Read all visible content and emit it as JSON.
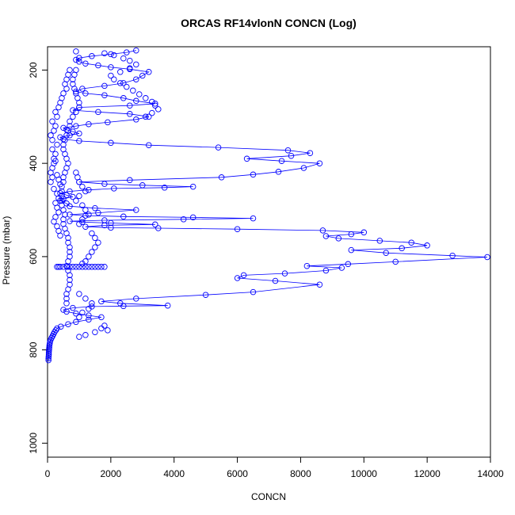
{
  "chart_data": {
    "type": "line",
    "title": "ORCAS RF14vlonN CONCN (Log)",
    "xlabel": "CONCN",
    "ylabel": "Pressure (mbar)",
    "xlim": [
      0,
      14000
    ],
    "ylim": [
      150,
      1030
    ],
    "y_reversed": true,
    "grid": false,
    "legend": "none",
    "x_ticks": [
      0,
      2000,
      4000,
      6000,
      8000,
      10000,
      12000,
      14000
    ],
    "y_ticks": [
      200,
      400,
      600,
      800,
      1000
    ],
    "colors": {
      "series": "#0000ff",
      "axes": "#000000"
    },
    "series": [
      {
        "points": [
          [
            30,
            822
          ],
          [
            30,
            818
          ],
          [
            35,
            814
          ],
          [
            40,
            810
          ],
          [
            40,
            806
          ],
          [
            45,
            802
          ],
          [
            50,
            798
          ],
          [
            55,
            794
          ],
          [
            60,
            790
          ],
          [
            70,
            786
          ],
          [
            80,
            782
          ],
          [
            100,
            778
          ],
          [
            130,
            774
          ],
          [
            160,
            770
          ],
          [
            190,
            766
          ],
          [
            220,
            762
          ],
          [
            260,
            758
          ],
          [
            300,
            754
          ],
          [
            420,
            750
          ],
          [
            650,
            745
          ],
          [
            900,
            740
          ],
          [
            1300,
            735
          ],
          [
            1700,
            730
          ],
          [
            1300,
            726
          ],
          [
            900,
            722
          ],
          [
            600,
            718
          ],
          [
            500,
            714
          ],
          [
            800,
            710
          ],
          [
            1400,
            707
          ],
          [
            2400,
            706
          ],
          [
            3800,
            705
          ],
          [
            2300,
            700
          ],
          [
            1700,
            696
          ],
          [
            2800,
            690
          ],
          [
            5000,
            682
          ],
          [
            6500,
            676
          ],
          [
            8600,
            660
          ],
          [
            7200,
            652
          ],
          [
            6000,
            646
          ],
          [
            6200,
            640
          ],
          [
            7500,
            636
          ],
          [
            8800,
            630
          ],
          [
            9300,
            624
          ],
          [
            8200,
            620
          ],
          [
            9500,
            616
          ],
          [
            11000,
            611
          ],
          [
            13900,
            601
          ],
          [
            12800,
            598
          ],
          [
            10700,
            592
          ],
          [
            9600,
            586
          ],
          [
            11200,
            582
          ],
          [
            12000,
            576
          ],
          [
            11500,
            570
          ],
          [
            10500,
            566
          ],
          [
            9200,
            561
          ],
          [
            8800,
            556
          ],
          [
            9600,
            552
          ],
          [
            10000,
            548
          ],
          [
            8700,
            544
          ],
          [
            6000,
            541
          ],
          [
            3500,
            539
          ],
          [
            2000,
            538
          ],
          [
            1200,
            536
          ],
          [
            1800,
            533
          ],
          [
            3400,
            531
          ],
          [
            2000,
            528
          ],
          [
            1100,
            526
          ],
          [
            700,
            524
          ],
          [
            1800,
            522
          ],
          [
            4300,
            520
          ],
          [
            6500,
            518
          ],
          [
            4600,
            516
          ],
          [
            2400,
            514
          ],
          [
            1200,
            512
          ],
          [
            700,
            510
          ],
          [
            1600,
            506
          ],
          [
            2800,
            500
          ],
          [
            1500,
            496
          ],
          [
            700,
            492
          ],
          [
            600,
            486
          ],
          [
            400,
            480
          ],
          [
            500,
            476
          ],
          [
            800,
            472
          ],
          [
            600,
            468
          ],
          [
            400,
            464
          ],
          [
            700,
            460
          ],
          [
            1300,
            457
          ],
          [
            2100,
            454
          ],
          [
            3700,
            452
          ],
          [
            4600,
            450
          ],
          [
            3000,
            447
          ],
          [
            1800,
            444
          ],
          [
            1000,
            440
          ],
          [
            2600,
            436
          ],
          [
            5500,
            430
          ],
          [
            6500,
            424
          ],
          [
            7300,
            418
          ],
          [
            8100,
            410
          ],
          [
            8600,
            400
          ],
          [
            7400,
            395
          ],
          [
            6300,
            390
          ],
          [
            7700,
            384
          ],
          [
            8300,
            378
          ],
          [
            7600,
            372
          ],
          [
            5400,
            366
          ],
          [
            3200,
            361
          ],
          [
            2000,
            356
          ],
          [
            1000,
            352
          ],
          [
            500,
            348
          ],
          [
            400,
            344
          ],
          [
            700,
            340
          ],
          [
            1000,
            336
          ],
          [
            800,
            332
          ],
          [
            600,
            328
          ],
          [
            500,
            324
          ],
          [
            900,
            320
          ],
          [
            1300,
            316
          ],
          [
            1900,
            312
          ],
          [
            2800,
            306
          ],
          [
            3200,
            300
          ],
          [
            2600,
            294
          ],
          [
            1600,
            290
          ],
          [
            800,
            286
          ],
          [
            1000,
            280
          ],
          [
            2600,
            276
          ],
          [
            3400,
            272
          ],
          [
            2800,
            266
          ],
          [
            2400,
            260
          ],
          [
            1800,
            254
          ],
          [
            1200,
            250
          ],
          [
            900,
            246
          ],
          [
            1100,
            240
          ],
          [
            1800,
            234
          ],
          [
            2400,
            228
          ],
          [
            2800,
            220
          ],
          [
            3000,
            212
          ],
          [
            3200,
            204
          ],
          [
            2600,
            198
          ],
          [
            2000,
            194
          ],
          [
            1600,
            190
          ],
          [
            1200,
            186
          ],
          [
            1000,
            182
          ],
          [
            900,
            178
          ],
          [
            1000,
            174
          ],
          [
            1400,
            170
          ],
          [
            2000,
            166
          ],
          [
            2500,
            162
          ],
          [
            2800,
            158
          ]
        ]
      }
    ],
    "markers": [
      [
        900,
        160
      ],
      [
        1800,
        164
      ],
      [
        2100,
        168
      ],
      [
        2400,
        175
      ],
      [
        2600,
        180
      ],
      [
        2800,
        188
      ],
      [
        2600,
        196
      ],
      [
        2300,
        204
      ],
      [
        2000,
        212
      ],
      [
        2100,
        220
      ],
      [
        2300,
        228
      ],
      [
        2500,
        236
      ],
      [
        2700,
        244
      ],
      [
        2900,
        252
      ],
      [
        3100,
        260
      ],
      [
        3300,
        268
      ],
      [
        3400,
        276
      ],
      [
        3500,
        284
      ],
      [
        3300,
        292
      ],
      [
        3100,
        300
      ],
      [
        900,
        200
      ],
      [
        850,
        210
      ],
      [
        800,
        220
      ],
      [
        800,
        230
      ],
      [
        850,
        240
      ],
      [
        900,
        250
      ],
      [
        950,
        260
      ],
      [
        1000,
        270
      ],
      [
        1000,
        280
      ],
      [
        900,
        290
      ],
      [
        800,
        300
      ],
      [
        700,
        310
      ],
      [
        700,
        320
      ],
      [
        650,
        330
      ],
      [
        600,
        340
      ],
      [
        550,
        350
      ],
      [
        500,
        360
      ],
      [
        500,
        370
      ],
      [
        550,
        380
      ],
      [
        600,
        390
      ],
      [
        650,
        400
      ],
      [
        600,
        410
      ],
      [
        550,
        420
      ],
      [
        500,
        430
      ],
      [
        500,
        440
      ],
      [
        450,
        450
      ],
      [
        450,
        460
      ],
      [
        450,
        470
      ],
      [
        450,
        480
      ],
      [
        450,
        490
      ],
      [
        500,
        500
      ],
      [
        550,
        510
      ],
      [
        500,
        520
      ],
      [
        500,
        530
      ],
      [
        550,
        540
      ],
      [
        600,
        550
      ],
      [
        650,
        560
      ],
      [
        650,
        570
      ],
      [
        700,
        580
      ],
      [
        700,
        590
      ],
      [
        700,
        600
      ],
      [
        650,
        610
      ],
      [
        600,
        620
      ],
      [
        620,
        622
      ],
      [
        700,
        622
      ],
      [
        800,
        622
      ],
      [
        900,
        622
      ],
      [
        1000,
        622
      ],
      [
        1100,
        622
      ],
      [
        1200,
        622
      ],
      [
        1300,
        622
      ],
      [
        1400,
        622
      ],
      [
        1500,
        622
      ],
      [
        1600,
        622
      ],
      [
        1700,
        622
      ],
      [
        1800,
        622
      ],
      [
        500,
        622
      ],
      [
        400,
        622
      ],
      [
        300,
        622
      ],
      [
        350,
        622
      ],
      [
        650,
        630
      ],
      [
        700,
        640
      ],
      [
        700,
        650
      ],
      [
        700,
        660
      ],
      [
        650,
        670
      ],
      [
        600,
        680
      ],
      [
        600,
        690
      ],
      [
        600,
        700
      ],
      [
        1000,
        680
      ],
      [
        1200,
        690
      ],
      [
        1400,
        700
      ],
      [
        1300,
        712
      ],
      [
        1100,
        720
      ],
      [
        1000,
        730
      ],
      [
        1800,
        748
      ],
      [
        1700,
        754
      ],
      [
        1900,
        758
      ],
      [
        1500,
        762
      ],
      [
        1200,
        768
      ],
      [
        1000,
        772
      ],
      [
        200,
        390
      ],
      [
        250,
        380
      ],
      [
        150,
        370
      ],
      [
        300,
        360
      ],
      [
        150,
        350
      ],
      [
        100,
        340
      ],
      [
        200,
        330
      ],
      [
        250,
        320
      ],
      [
        150,
        310
      ],
      [
        300,
        300
      ],
      [
        250,
        290
      ],
      [
        350,
        280
      ],
      [
        400,
        270
      ],
      [
        450,
        260
      ],
      [
        500,
        250
      ],
      [
        600,
        240
      ],
      [
        550,
        230
      ],
      [
        600,
        220
      ],
      [
        650,
        210
      ],
      [
        700,
        200
      ],
      [
        100,
        420
      ],
      [
        150,
        410
      ],
      [
        200,
        400
      ],
      [
        250,
        395
      ],
      [
        300,
        425
      ],
      [
        350,
        435
      ],
      [
        400,
        445
      ],
      [
        150,
        430
      ],
      [
        100,
        440
      ],
      [
        200,
        455
      ],
      [
        300,
        465
      ],
      [
        350,
        475
      ],
      [
        250,
        485
      ],
      [
        300,
        495
      ],
      [
        350,
        505
      ],
      [
        250,
        515
      ],
      [
        200,
        525
      ],
      [
        300,
        535
      ],
      [
        350,
        545
      ],
      [
        400,
        555
      ],
      [
        900,
        420
      ],
      [
        950,
        430
      ],
      [
        1000,
        440
      ],
      [
        1100,
        450
      ],
      [
        1200,
        460
      ],
      [
        1000,
        470
      ],
      [
        900,
        480
      ],
      [
        1100,
        490
      ],
      [
        1200,
        500
      ],
      [
        1300,
        510
      ],
      [
        1100,
        520
      ],
      [
        1000,
        530
      ],
      [
        1400,
        550
      ],
      [
        1500,
        560
      ],
      [
        1600,
        570
      ],
      [
        1500,
        580
      ],
      [
        1400,
        590
      ],
      [
        1300,
        600
      ],
      [
        1200,
        610
      ],
      [
        1100,
        615
      ]
    ]
  }
}
